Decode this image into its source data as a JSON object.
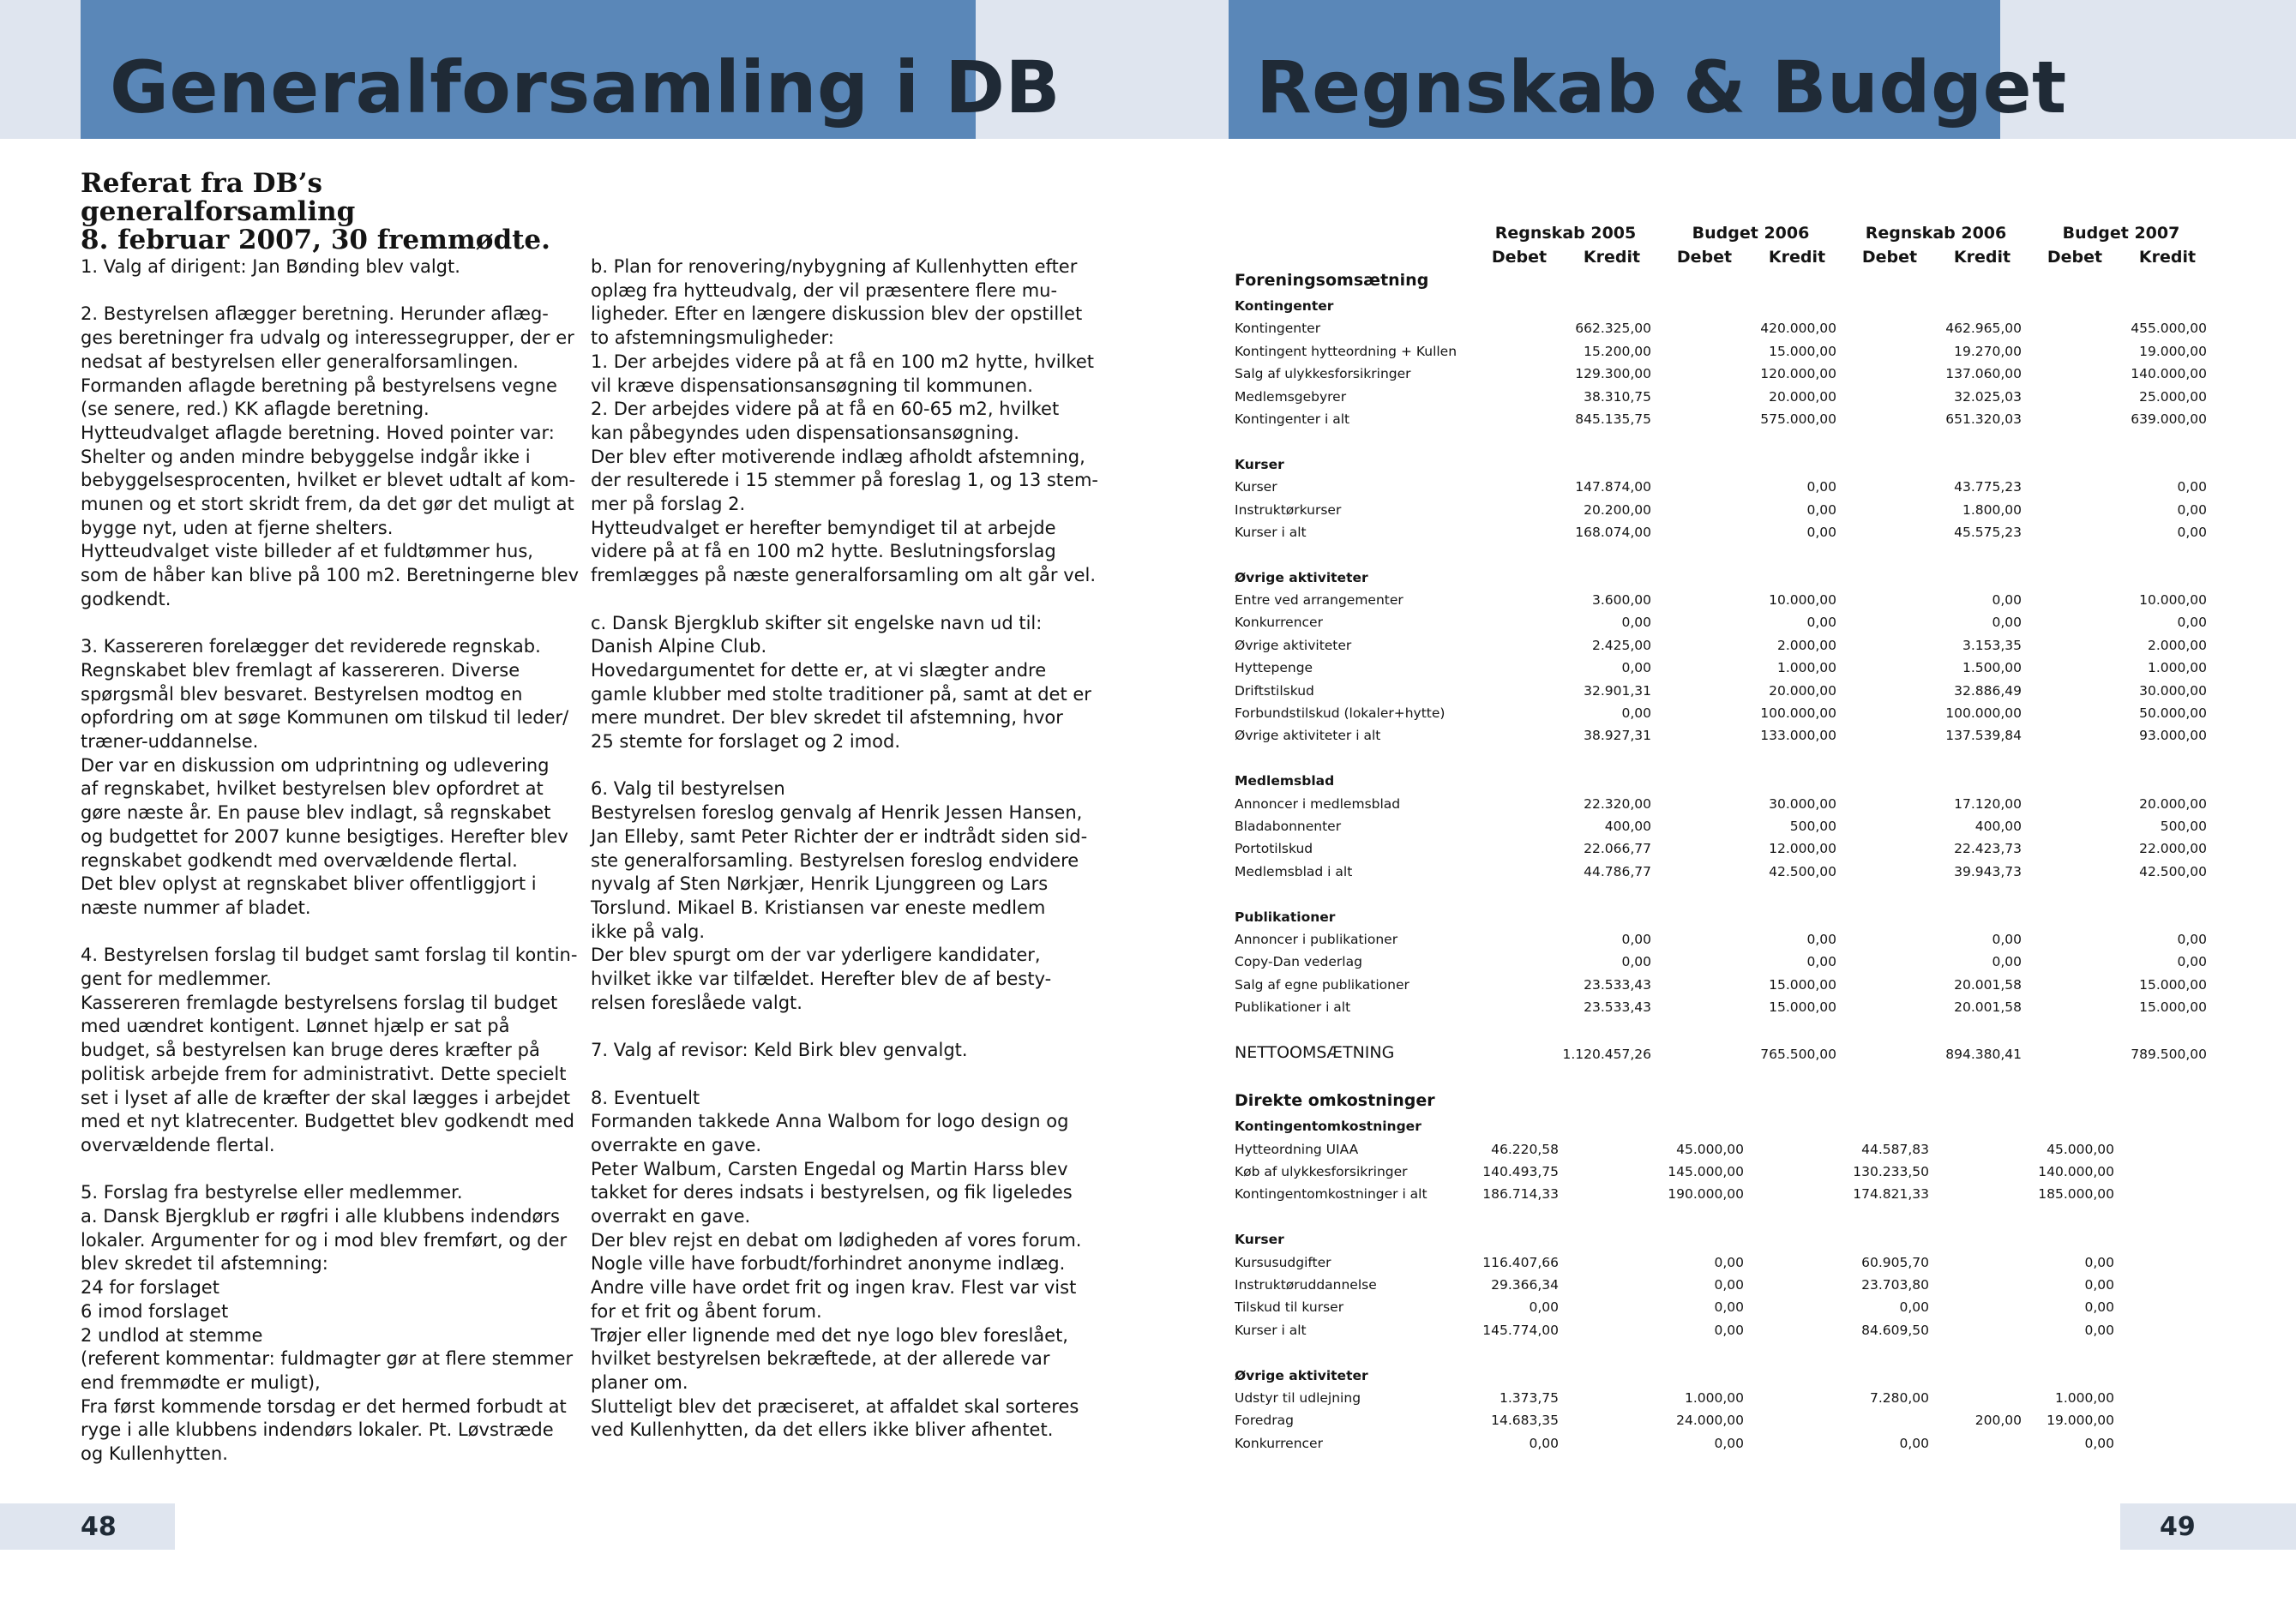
{
  "left_page": {
    "title": "Generalforsamling i DB",
    "page_number": "48",
    "subhead_lines": [
      "Referat fra DB’s generalforsamling",
      "8. februar 2007, 30 fremmødte."
    ],
    "column1": [
      [
        "1. Valg af dirigent: Jan Bønding blev valgt."
      ],
      [
        "2. Bestyrelsen aflægger beretning. Herunder aflæg-",
        "ges beretninger fra udvalg og interessegrupper, der er",
        "nedsat af bestyrelsen eller generalforsamlingen.",
        "Formanden aflagde beretning på bestyrelsens vegne",
        "(se senere, red.) KK aflagde beretning.",
        "Hytteudvalget aflagde beretning. Hoved pointer var:",
        "Shelter og anden mindre bebyggelse indgår ikke i",
        "bebyggelsesprocenten, hvilket er blevet udtalt af kom-",
        "munen og et stort skridt frem, da det gør det muligt at",
        "bygge nyt, uden at fjerne shelters.",
        "Hytteudvalget viste billeder af et fuldtømmer hus,",
        "som de håber kan blive på 100 m2. Beretningerne blev",
        "godkendt."
      ],
      [
        "3. Kassereren forelægger det reviderede regnskab.",
        "Regnskabet blev fremlagt af kassereren. Diverse",
        "spørgsmål blev besvaret. Bestyrelsen modtog en",
        "opfordring om at søge Kommunen om tilskud til leder/",
        "træner-uddannelse.",
        "Der var en diskussion om udprintning og udlevering",
        "af regnskabet, hvilket bestyrelsen blev opfordret at",
        "gøre næste år. En pause blev indlagt, så regnskabet",
        "og budgettet for 2007 kunne besigtiges. Herefter blev",
        "regnskabet godkendt med overvældende flertal.",
        "Det blev oplyst at regnskabet bliver offentliggjort i",
        "næste nummer af bladet."
      ],
      [
        "4. Bestyrelsen forslag til budget samt forslag til kontin-",
        "gent for medlemmer.",
        "Kassereren fremlagde bestyrelsens forslag til budget",
        "med uændret kontigent. Lønnet hjælp er sat på",
        "budget, så bestyrelsen kan bruge deres kræfter på",
        "politisk arbejde frem for administrativt. Dette specielt",
        "set i lyset af alle de kræfter der skal lægges i arbejdet",
        "med et nyt klatrecenter. Budgettet blev godkendt med",
        "overvældende flertal."
      ],
      [
        "5. Forslag fra bestyrelse eller medlemmer.",
        "a. Dansk Bjergklub er røgfri i alle klubbens indendørs",
        "lokaler. Argumenter for og i mod blev fremført, og der",
        "blev skredet til afstemning:",
        "24 for forslaget",
        "6 imod forslaget",
        "2 undlod at stemme",
        "(referent kommentar: fuldmagter gør at flere stemmer",
        "end fremmødte er muligt),",
        "Fra først kommende torsdag er det hermed forbudt at",
        "ryge i alle klubbens indendørs lokaler. Pt. Løvstræde",
        "og Kullenhytten."
      ]
    ],
    "column2": [
      [
        "b. Plan for renovering/nybygning af Kullenhytten efter",
        "oplæg fra hytteudvalg, der vil præsentere flere mu-",
        "ligheder. Efter en længere diskussion blev der opstillet",
        "to afstemningsmuligheder:",
        "1. Der arbejdes videre på at få en 100 m2 hytte, hvilket",
        "vil kræve dispensationsansøgning til kommunen.",
        "2. Der arbejdes videre på at få en 60-65 m2, hvilket",
        "kan påbegyndes uden dispensationsansøgning.",
        "Der blev efter motiverende indlæg afholdt afstemning,",
        "der resulterede i 15 stemmer på foreslag 1, og 13 stem-",
        "mer på forslag 2.",
        "Hytteudvalget er herefter bemyndiget til at arbejde",
        "videre på at få en 100 m2 hytte. Beslutningsforslag",
        "fremlægges på næste generalforsamling om alt går vel."
      ],
      [
        "c. Dansk Bjergklub skifter sit engelske navn ud til:",
        "Danish Alpine Club.",
        "Hovedargumentet for dette er, at vi slægter andre",
        "gamle klubber med stolte traditioner på, samt at det er",
        "mere mundret. Der blev skredet til afstemning, hvor",
        "25 stemte for forslaget og 2 imod."
      ],
      [
        "6. Valg til bestyrelsen",
        "Bestyrelsen foreslog genvalg af Henrik Jessen Hansen,",
        "Jan Elleby, samt Peter Richter der er indtrådt siden sid-",
        "ste generalforsamling. Bestyrelsen foreslog endvidere",
        "nyvalg af Sten Nørkjær, Henrik Ljunggreen og Lars",
        "Torslund. Mikael B. Kristiansen var eneste medlem",
        "ikke på valg.",
        "Der blev spurgt om der var yderligere kandidater,",
        "hvilket ikke var tilfældet. Herefter blev de af besty-",
        "relsen foreslåede valgt."
      ],
      [
        "7. Valg af revisor: Keld Birk blev genvalgt."
      ],
      [
        "8. Eventuelt",
        "Formanden takkede Anna Walbom for logo design og",
        "overrakte en gave.",
        "Peter Walbum, Carsten Engedal og Martin Harss blev",
        "takket for deres indsats i bestyrelsen, og fik ligeledes",
        "overrakt en gave.",
        "Der blev rejst en debat om lødigheden af vores forum.",
        "Nogle ville have forbudt/forhindret anonyme indlæg.",
        "Andre ville have ordet frit og ingen krav. Flest var vist",
        "for et frit og åbent forum.",
        "Trøjer eller lignende med det nye logo blev foreslået,",
        "hvilket bestyrelsen bekræftede, at der allerede var",
        "planer om.",
        "Slutteligt blev det præciseret, at affaldet skal sorteres",
        "ved Kullenhytten, da det ellers ikke bliver afhentet."
      ]
    ]
  },
  "right_page": {
    "title": "Regnskab & Budget",
    "page_number": "49",
    "period_headers": [
      "Regnskab 2005",
      "Budget 2006",
      "Regnskab 2006",
      "Budget 2007"
    ],
    "debit_label": "Debet",
    "credit_label": "Kredit",
    "rows": [
      {
        "type": "section",
        "label": "Foreningsomsætning"
      },
      {
        "type": "sub",
        "label": "Kontingenter"
      },
      {
        "label": "Kontingenter",
        "v": [
          "",
          "662.325,00",
          "",
          "420.000,00",
          "",
          "462.965,00",
          "",
          "455.000,00"
        ]
      },
      {
        "label": "Kontingent hytteordning + Kullen",
        "v": [
          "",
          "15.200,00",
          "",
          "15.000,00",
          "",
          "19.270,00",
          "",
          "19.000,00"
        ]
      },
      {
        "label": "Salg af ulykkesforsikringer",
        "v": [
          "",
          "129.300,00",
          "",
          "120.000,00",
          "",
          "137.060,00",
          "",
          "140.000,00"
        ]
      },
      {
        "label": "Medlemsgebyrer",
        "v": [
          "",
          "38.310,75",
          "",
          "20.000,00",
          "",
          "32.025,03",
          "",
          "25.000,00"
        ]
      },
      {
        "label": "Kontingenter i alt",
        "v": [
          "",
          "845.135,75",
          "",
          "575.000,00",
          "",
          "651.320,03",
          "",
          "639.000,00"
        ]
      },
      {
        "type": "blank"
      },
      {
        "type": "sub",
        "label": "Kurser"
      },
      {
        "label": "Kurser",
        "v": [
          "",
          "147.874,00",
          "",
          "0,00",
          "",
          "43.775,23",
          "",
          "0,00"
        ]
      },
      {
        "label": "Instruktørkurser",
        "v": [
          "",
          "20.200,00",
          "",
          "0,00",
          "",
          "1.800,00",
          "",
          "0,00"
        ]
      },
      {
        "label": "Kurser i alt",
        "v": [
          "",
          "168.074,00",
          "",
          "0,00",
          "",
          "45.575,23",
          "",
          "0,00"
        ]
      },
      {
        "type": "blank"
      },
      {
        "type": "sub",
        "label": "Øvrige aktiviteter"
      },
      {
        "label": "Entre ved arrangementer",
        "v": [
          "",
          "3.600,00",
          "",
          "10.000,00",
          "",
          "0,00",
          "",
          "10.000,00"
        ]
      },
      {
        "label": "Konkurrencer",
        "v": [
          "",
          "0,00",
          "",
          "0,00",
          "",
          "0,00",
          "",
          "0,00"
        ]
      },
      {
        "label": "Øvrige aktiviteter",
        "v": [
          "",
          "2.425,00",
          "",
          "2.000,00",
          "",
          "3.153,35",
          "",
          "2.000,00"
        ]
      },
      {
        "label": "Hyttepenge",
        "v": [
          "",
          "0,00",
          "",
          "1.000,00",
          "",
          "1.500,00",
          "",
          "1.000,00"
        ]
      },
      {
        "label": "Driftstilskud",
        "v": [
          "",
          "32.901,31",
          "",
          "20.000,00",
          "",
          "32.886,49",
          "",
          "30.000,00"
        ]
      },
      {
        "label": "Forbundstilskud (lokaler+hytte)",
        "v": [
          "",
          "0,00",
          "",
          "100.000,00",
          "",
          "100.000,00",
          "",
          "50.000,00"
        ]
      },
      {
        "label": "Øvrige aktiviteter i alt",
        "v": [
          "",
          "38.927,31",
          "",
          "133.000,00",
          "",
          "137.539,84",
          "",
          "93.000,00"
        ]
      },
      {
        "type": "blank"
      },
      {
        "type": "sub",
        "label": "Medlemsblad"
      },
      {
        "label": "Annoncer i medlemsblad",
        "v": [
          "",
          "22.320,00",
          "",
          "30.000,00",
          "",
          "17.120,00",
          "",
          "20.000,00"
        ]
      },
      {
        "label": "Bladabonnenter",
        "v": [
          "",
          "400,00",
          "",
          "500,00",
          "",
          "400,00",
          "",
          "500,00"
        ]
      },
      {
        "label": "Portotilskud",
        "v": [
          "",
          "22.066,77",
          "",
          "12.000,00",
          "",
          "22.423,73",
          "",
          "22.000,00"
        ]
      },
      {
        "label": "Medlemsblad i alt",
        "v": [
          "",
          "44.786,77",
          "",
          "42.500,00",
          "",
          "39.943,73",
          "",
          "42.500,00"
        ]
      },
      {
        "type": "blank"
      },
      {
        "type": "sub",
        "label": "Publikationer"
      },
      {
        "label": "Annoncer i publikationer",
        "v": [
          "",
          "0,00",
          "",
          "0,00",
          "",
          "0,00",
          "",
          "0,00"
        ]
      },
      {
        "label": "Copy-Dan vederlag",
        "v": [
          "",
          "0,00",
          "",
          "0,00",
          "",
          "0,00",
          "",
          "0,00"
        ]
      },
      {
        "label": "Salg af egne publikationer",
        "v": [
          "",
          "23.533,43",
          "",
          "15.000,00",
          "",
          "20.001,58",
          "",
          "15.000,00"
        ]
      },
      {
        "label": "Publikationer i alt",
        "v": [
          "",
          "23.533,43",
          "",
          "15.000,00",
          "",
          "20.001,58",
          "",
          "15.000,00"
        ]
      },
      {
        "type": "blank"
      },
      {
        "type": "net",
        "label": "NETTOOMSÆTNING",
        "v": [
          "",
          "1.120.457,26",
          "",
          "765.500,00",
          "",
          "894.380,41",
          "",
          "789.500,00"
        ]
      },
      {
        "type": "blank"
      },
      {
        "type": "section",
        "label": "Direkte omkostninger"
      },
      {
        "type": "sub",
        "label": "Kontingentomkostninger"
      },
      {
        "label": "Hytteordning UIAA",
        "v": [
          "46.220,58",
          "",
          "45.000,00",
          "",
          "44.587,83",
          "",
          "45.000,00",
          ""
        ]
      },
      {
        "label": "Køb af ulykkesforsikringer",
        "v": [
          "140.493,75",
          "",
          "145.000,00",
          "",
          "130.233,50",
          "",
          "140.000,00",
          ""
        ]
      },
      {
        "label": "Kontingentomkostninger i alt",
        "v": [
          "186.714,33",
          "",
          "190.000,00",
          "",
          "174.821,33",
          "",
          "185.000,00",
          ""
        ]
      },
      {
        "type": "blank"
      },
      {
        "type": "sub",
        "label": "Kurser"
      },
      {
        "label": "Kursusudgifter",
        "v": [
          "116.407,66",
          "",
          "0,00",
          "",
          "60.905,70",
          "",
          "0,00",
          ""
        ]
      },
      {
        "label": "Instruktøruddannelse",
        "v": [
          "29.366,34",
          "",
          "0,00",
          "",
          "23.703,80",
          "",
          "0,00",
          ""
        ]
      },
      {
        "label": "Tilskud til kurser",
        "v": [
          "0,00",
          "",
          "0,00",
          "",
          "0,00",
          "",
          "0,00",
          ""
        ]
      },
      {
        "label": "Kurser i alt",
        "v": [
          "145.774,00",
          "",
          "0,00",
          "",
          "84.609,50",
          "",
          "0,00",
          ""
        ]
      },
      {
        "type": "blank"
      },
      {
        "type": "sub",
        "label": "Øvrige aktiviteter"
      },
      {
        "label": "Udstyr til udlejning",
        "v": [
          "1.373,75",
          "",
          "1.000,00",
          "",
          "7.280,00",
          "",
          "1.000,00",
          ""
        ]
      },
      {
        "label": "Foredrag",
        "v": [
          "14.683,35",
          "",
          "24.000,00",
          "",
          "",
          "200,00",
          "19.000,00",
          ""
        ]
      },
      {
        "label": "Konkurrencer",
        "v": [
          "0,00",
          "",
          "0,00",
          "",
          "0,00",
          "",
          "0,00",
          ""
        ]
      }
    ]
  },
  "colors": {
    "header_blue": "#5a87b8",
    "band_light": "#dfe5ef",
    "title_text": "#1f2a36"
  }
}
